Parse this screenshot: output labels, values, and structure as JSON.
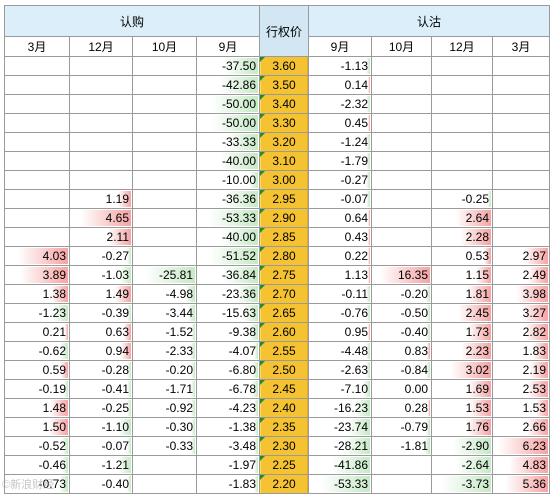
{
  "headers": {
    "call_group": "认购",
    "put_group": "认沽",
    "strike_label": "行权价",
    "call_months": [
      "3月",
      "12月",
      "10月",
      "9月"
    ],
    "put_months": [
      "9月",
      "10月",
      "12月",
      "3月"
    ]
  },
  "colors": {
    "header_bg": "#dceefa",
    "strike_bg": "#f5c232",
    "strike_marker": "#1e8c3a",
    "negative_bar": "#c6e9c6",
    "positive_bar": "#f5a3a3",
    "grid_line": "#9a9a9a"
  },
  "rows": [
    {
      "strike": "3.60",
      "call": [
        "",
        "",
        "",
        "-37.50"
      ],
      "put": [
        "-1.13",
        "",
        "",
        ""
      ]
    },
    {
      "strike": "3.50",
      "call": [
        "",
        "",
        "",
        "-42.86"
      ],
      "put": [
        "0.14",
        "",
        "",
        ""
      ]
    },
    {
      "strike": "3.40",
      "call": [
        "",
        "",
        "",
        "-50.00"
      ],
      "put": [
        "-2.32",
        "",
        "",
        ""
      ]
    },
    {
      "strike": "3.30",
      "call": [
        "",
        "",
        "",
        "-50.00"
      ],
      "put": [
        "0.45",
        "",
        "",
        ""
      ]
    },
    {
      "strike": "3.20",
      "call": [
        "",
        "",
        "",
        "-33.33"
      ],
      "put": [
        "-1.24",
        "",
        "",
        ""
      ]
    },
    {
      "strike": "3.10",
      "call": [
        "",
        "",
        "",
        "-40.00"
      ],
      "put": [
        "-1.79",
        "",
        "",
        ""
      ]
    },
    {
      "strike": "3.00",
      "call": [
        "",
        "",
        "",
        "-10.00"
      ],
      "put": [
        "-0.27",
        "",
        "",
        ""
      ]
    },
    {
      "strike": "2.95",
      "call": [
        "",
        "1.19",
        "",
        "-36.36"
      ],
      "put": [
        "-0.07",
        "",
        "-0.25",
        ""
      ]
    },
    {
      "strike": "2.90",
      "call": [
        "",
        "4.65",
        "",
        "-53.33"
      ],
      "put": [
        "0.64",
        "",
        "2.64",
        ""
      ]
    },
    {
      "strike": "2.85",
      "call": [
        "",
        "2.11",
        "",
        "-40.00"
      ],
      "put": [
        "0.43",
        "",
        "2.28",
        ""
      ]
    },
    {
      "strike": "2.80",
      "call": [
        "4.03",
        "-0.27",
        "",
        "-51.52"
      ],
      "put": [
        "0.22",
        "",
        "0.53",
        "2.97"
      ]
    },
    {
      "strike": "2.75",
      "call": [
        "3.89",
        "-1.03",
        "-25.81",
        "-36.84"
      ],
      "put": [
        "1.13",
        "16.35",
        "1.15",
        "2.49"
      ]
    },
    {
      "strike": "2.70",
      "call": [
        "1.38",
        "1.49",
        "-4.98",
        "-23.36"
      ],
      "put": [
        "-0.11",
        "-0.20",
        "1.81",
        "3.98"
      ]
    },
    {
      "strike": "2.65",
      "call": [
        "-1.23",
        "-0.39",
        "-3.44",
        "-15.63"
      ],
      "put": [
        "-0.76",
        "-0.50",
        "2.45",
        "3.27"
      ]
    },
    {
      "strike": "2.60",
      "call": [
        "0.21",
        "0.63",
        "-1.52",
        "-9.38"
      ],
      "put": [
        "0.95",
        "-0.40",
        "1.73",
        "2.82"
      ]
    },
    {
      "strike": "2.55",
      "call": [
        "-0.62",
        "0.94",
        "-2.33",
        "-4.07"
      ],
      "put": [
        "-4.48",
        "0.83",
        "2.23",
        "1.83"
      ]
    },
    {
      "strike": "2.50",
      "call": [
        "0.59",
        "-0.28",
        "-0.20",
        "-6.80"
      ],
      "put": [
        "-2.63",
        "-0.84",
        "3.02",
        "2.19"
      ]
    },
    {
      "strike": "2.45",
      "call": [
        "-0.19",
        "-0.41",
        "-1.71",
        "-6.78"
      ],
      "put": [
        "-7.10",
        "0.00",
        "1.69",
        "2.53"
      ]
    },
    {
      "strike": "2.40",
      "call": [
        "1.48",
        "-0.25",
        "-0.92",
        "-4.23"
      ],
      "put": [
        "-16.23",
        "0.28",
        "1.53",
        "1.53"
      ]
    },
    {
      "strike": "2.35",
      "call": [
        "1.50",
        "-1.10",
        "-0.30",
        "-1.38"
      ],
      "put": [
        "-23.74",
        "-0.79",
        "1.76",
        "2.66"
      ]
    },
    {
      "strike": "2.30",
      "call": [
        "-0.52",
        "-0.07",
        "-0.33",
        "-3.48"
      ],
      "put": [
        "-28.21",
        "-1.81",
        "-2.90",
        "6.23"
      ]
    },
    {
      "strike": "2.25",
      "call": [
        "-0.46",
        "-1.21",
        "",
        "-1.97"
      ],
      "put": [
        "-41.86",
        "",
        "-2.64",
        "4.83"
      ]
    },
    {
      "strike": "2.20",
      "call": [
        "-0.73",
        "-0.40",
        "",
        "-1.83"
      ],
      "put": [
        "-53.33",
        "",
        "-3.73",
        "5.36"
      ]
    }
  ],
  "watermark": "©新浪财经"
}
